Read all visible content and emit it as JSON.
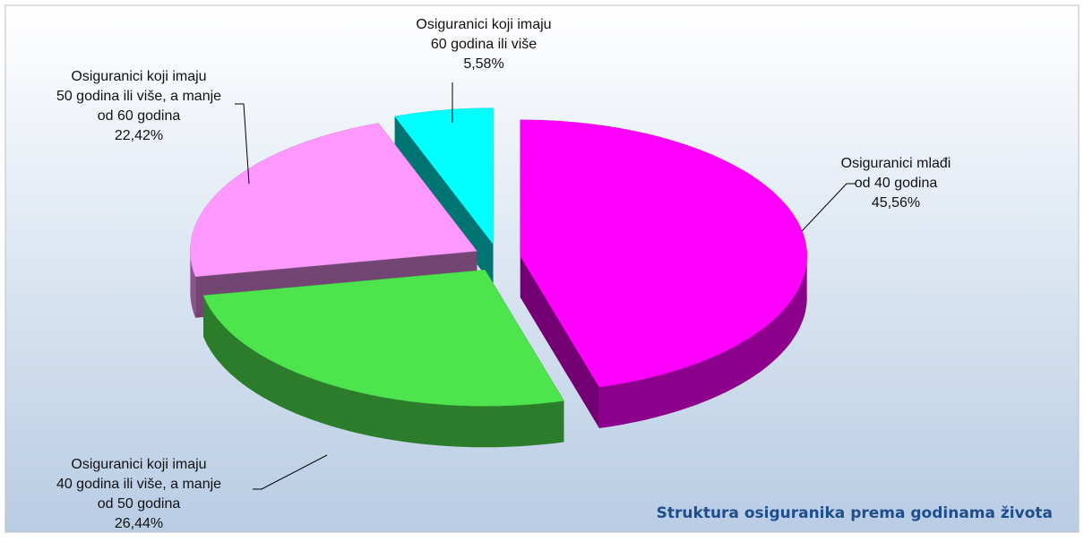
{
  "chart_data": {
    "type": "pie",
    "title": "Struktura osiguranika prema godinama života",
    "categories": [
      [
        "Osiguranici mlađi",
        "od 40 godina"
      ],
      [
        "Osiguranici koji imaju",
        "40 godina ili više, a manje",
        "od 50 godina"
      ],
      [
        "Osiguranici koji imaju",
        "50 godina ili više, a manje",
        "od 60 godina"
      ],
      [
        "Osiguranici koji imaju",
        "60 godina ili više"
      ]
    ],
    "values": [
      45.56,
      26.44,
      22.42,
      5.58
    ],
    "value_labels": [
      "45,56%",
      "26,44%",
      "22,42%",
      "5,58%"
    ],
    "colors": [
      "#ff00ff",
      "#4ee44e",
      "#ff99ff",
      "#00ffff"
    ]
  }
}
